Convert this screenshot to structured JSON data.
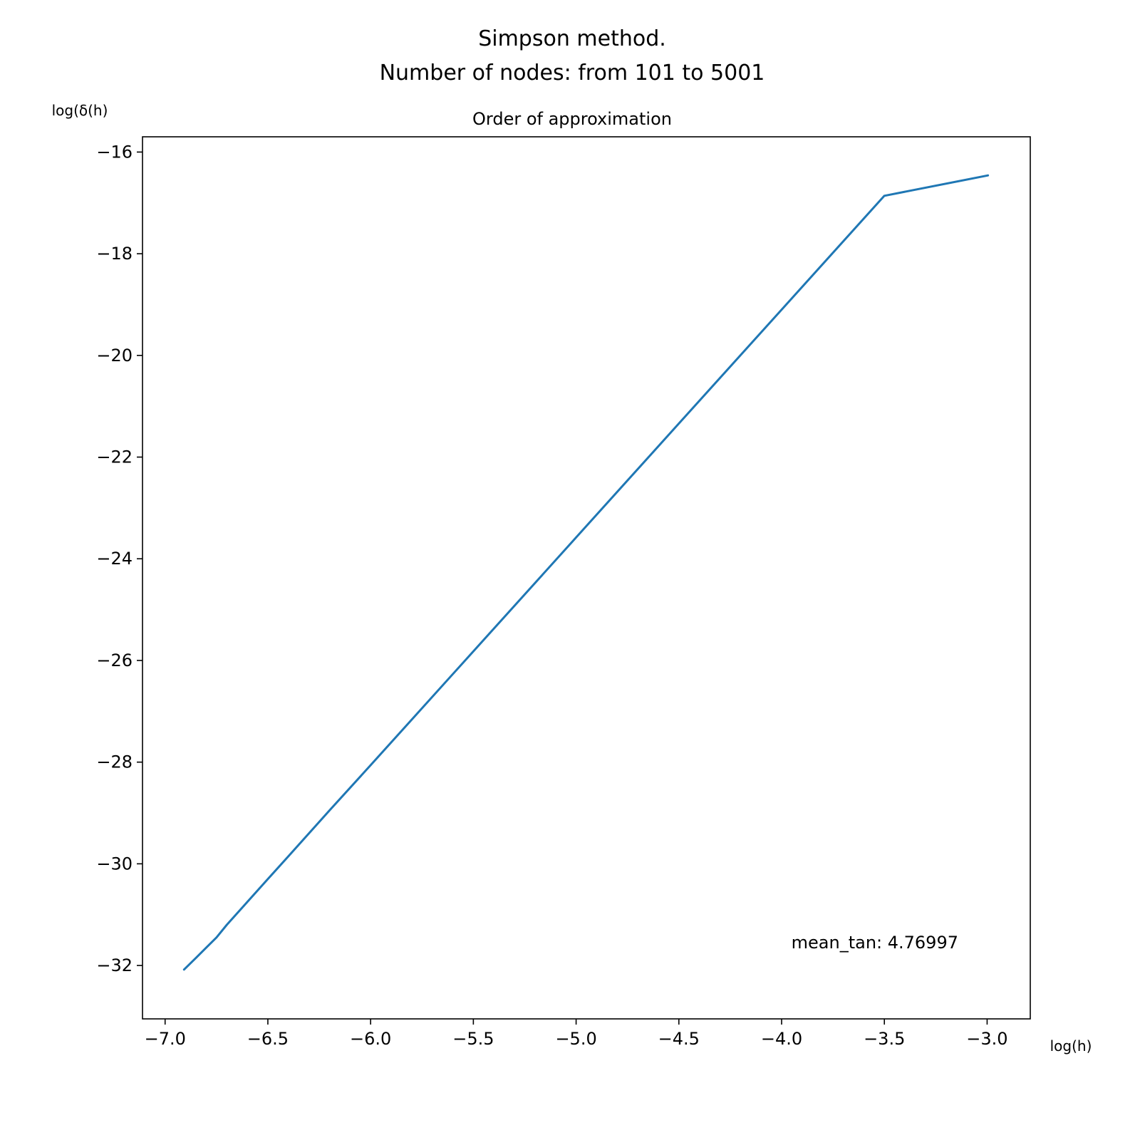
{
  "chart_data": {
    "type": "line",
    "suptitle_line1": "Simpson method.",
    "suptitle_line2": "Number of nodes: from 101 to 5001",
    "title": "Order of approximation",
    "xlabel": "log(h)",
    "ylabel": "log(δ(h)",
    "xlim": [
      -7.11,
      -2.79
    ],
    "ylim": [
      -33.05,
      -15.7
    ],
    "x_ticks": [
      -7.0,
      -6.5,
      -6.0,
      -5.5,
      -5.0,
      -4.5,
      -4.0,
      -3.5,
      -3.0
    ],
    "x_tick_labels": [
      "−7.0",
      "−6.5",
      "−6.0",
      "−5.5",
      "−5.0",
      "−4.5",
      "−4.0",
      "−3.5",
      "−3.0"
    ],
    "y_ticks": [
      -32,
      -30,
      -28,
      -26,
      -24,
      -22,
      -20,
      -18,
      -16
    ],
    "y_tick_labels": [
      "−32",
      "−30",
      "−28",
      "−26",
      "−24",
      "−22",
      "−20",
      "−18",
      "−16"
    ],
    "grid": false,
    "series": [
      {
        "color": "#1f77b4",
        "x": [
          -6.908,
          -6.85,
          -6.8,
          -6.75,
          -6.7,
          -6.6,
          -6.5,
          -6.4,
          -6.2,
          -6.0,
          -5.5,
          -5.0,
          -4.5,
          -4.0,
          -3.5,
          -2.996
        ],
        "y": [
          -32.08,
          -31.85,
          -31.65,
          -31.45,
          -31.2,
          -30.75,
          -30.3,
          -29.85,
          -28.95,
          -28.06,
          -25.82,
          -23.58,
          -21.34,
          -19.1,
          -16.86,
          -16.46
        ]
      }
    ],
    "annotation": "mean_tan: 4.76997",
    "annotation_position": "bottom-right"
  }
}
